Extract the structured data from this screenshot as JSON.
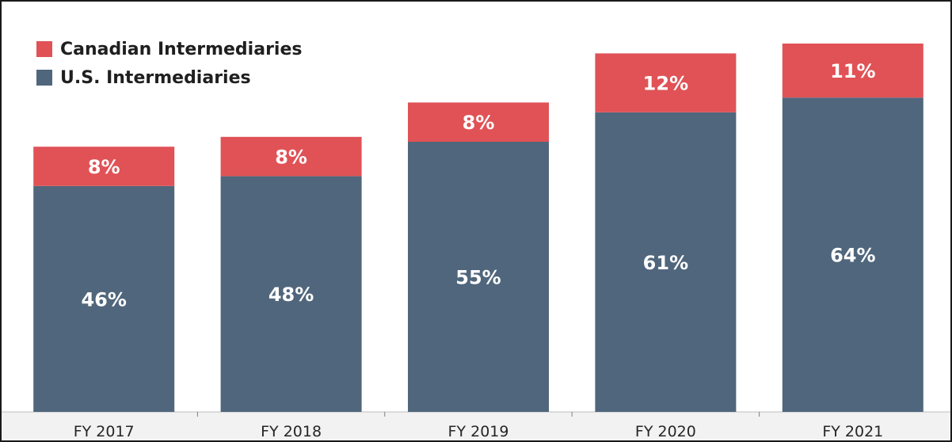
{
  "chart_data": {
    "type": "bar",
    "stacked": true,
    "categories": [
      "FY 2017",
      "FY 2018",
      "FY 2019",
      "FY 2020",
      "FY 2021"
    ],
    "series": [
      {
        "name": "U.S. Intermediaries",
        "values": [
          46,
          48,
          55,
          61,
          64
        ],
        "labels": [
          "46%",
          "48%",
          "55%",
          "61%",
          "64%"
        ],
        "color": "#50667c"
      },
      {
        "name": "Canadian Intermediaries",
        "values": [
          8,
          8,
          8,
          12,
          11
        ],
        "labels": [
          "8%",
          "8%",
          "8%",
          "12%",
          "11%"
        ],
        "color": "#e05256"
      }
    ],
    "ylim": [
      0,
      80
    ],
    "grid": false,
    "legend_position": "top-left"
  },
  "legend": [
    {
      "label": "Canadian Intermediaries",
      "color": "#e05256"
    },
    {
      "label": "U.S. Intermediaries",
      "color": "#50667c"
    }
  ]
}
